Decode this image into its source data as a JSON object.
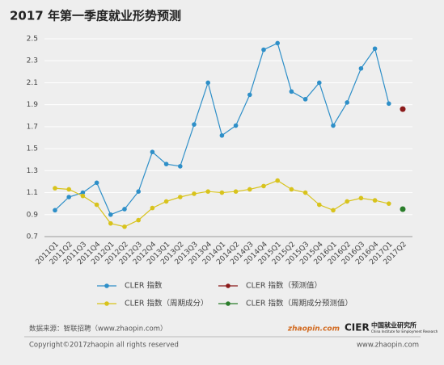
{
  "chart_data": {
    "type": "line",
    "title": "2017 年第一季度就业形势预测",
    "categories": [
      "2011Q1",
      "2011Q2",
      "2011Q3",
      "2011Q4",
      "2012Q1",
      "2012Q2",
      "2012Q3",
      "2012Q4",
      "2013Q1",
      "2013Q2",
      "2013Q3",
      "2013Q4",
      "2014Q1",
      "2014Q2",
      "2014Q3",
      "2014Q4",
      "2015Q1",
      "2015Q2",
      "2015Q3",
      "2015Q4",
      "2016Q1",
      "2016Q2",
      "2016Q3",
      "2016Q4",
      "2017Q1",
      "2017Q2"
    ],
    "series": [
      {
        "name": "CLER 指数",
        "color": "#2e8fc8",
        "values": [
          0.94,
          1.06,
          1.1,
          1.19,
          0.9,
          0.95,
          1.11,
          1.47,
          1.36,
          1.34,
          1.72,
          2.1,
          1.62,
          1.71,
          1.99,
          2.4,
          2.46,
          2.02,
          1.95,
          2.1,
          1.71,
          1.92,
          2.23,
          2.41,
          1.91,
          null
        ]
      },
      {
        "name": "CLER 指数（预测值）",
        "color": "#8b1a1a",
        "values": [
          null,
          null,
          null,
          null,
          null,
          null,
          null,
          null,
          null,
          null,
          null,
          null,
          null,
          null,
          null,
          null,
          null,
          null,
          null,
          null,
          null,
          null,
          null,
          null,
          null,
          1.86
        ]
      },
      {
        "name": "CLER 指数（周期成分）",
        "color": "#d8c31c",
        "values": [
          1.14,
          1.13,
          1.07,
          0.99,
          0.82,
          0.79,
          0.85,
          0.96,
          1.02,
          1.06,
          1.09,
          1.11,
          1.1,
          1.11,
          1.13,
          1.16,
          1.21,
          1.13,
          1.1,
          0.99,
          0.94,
          1.02,
          1.05,
          1.03,
          1.0,
          null
        ]
      },
      {
        "name": "CLER 指数（周期成分预测值）",
        "color": "#2a7d2a",
        "values": [
          null,
          null,
          null,
          null,
          null,
          null,
          null,
          null,
          null,
          null,
          null,
          null,
          null,
          null,
          null,
          null,
          null,
          null,
          null,
          null,
          null,
          null,
          null,
          null,
          null,
          0.95
        ]
      }
    ],
    "ylim": [
      0.7,
      2.5
    ],
    "yticks": [
      0.7,
      0.9,
      1.1,
      1.3,
      1.5,
      1.7,
      1.9,
      2.1,
      2.3,
      2.5
    ],
    "grid": true,
    "source": "数据来源：智联招聘（www.zhaopin.com）",
    "copyright": "Copyright©2017zhaopin all rights reserved",
    "website": "www.zhaopin.com",
    "logo_zhaopin": "zhaopin.com",
    "logo_cier": "CIER",
    "logo_cier_cn": "中国就业研究所",
    "logo_cier_en": "China Institute for Employment Research"
  }
}
